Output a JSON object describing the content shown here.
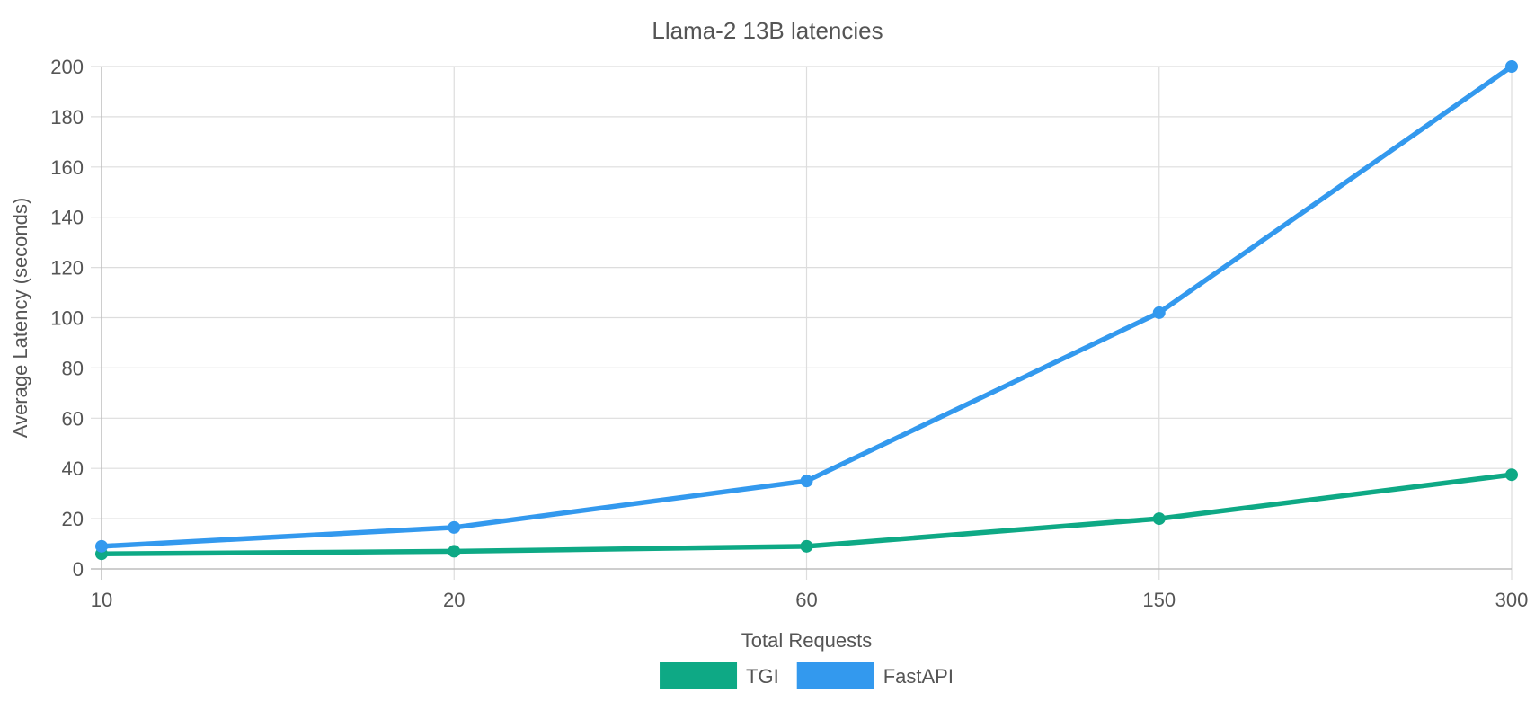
{
  "chart_data": {
    "type": "line",
    "title": "Llama-2 13B latencies",
    "xlabel": "Total Requests",
    "ylabel": "Average Latency (seconds)",
    "categories": [
      "10",
      "20",
      "60",
      "150",
      "300"
    ],
    "ylim": [
      0,
      200
    ],
    "yticks": [
      0,
      20,
      40,
      60,
      80,
      100,
      120,
      140,
      160,
      180,
      200
    ],
    "grid": true,
    "legend_position": "bottom",
    "series": [
      {
        "name": "TGI",
        "color": "#0ea985",
        "values": [
          6,
          7,
          9,
          20,
          37.5
        ]
      },
      {
        "name": "FastAPI",
        "color": "#3399ee",
        "values": [
          9,
          16.5,
          35,
          102,
          200
        ]
      }
    ]
  }
}
